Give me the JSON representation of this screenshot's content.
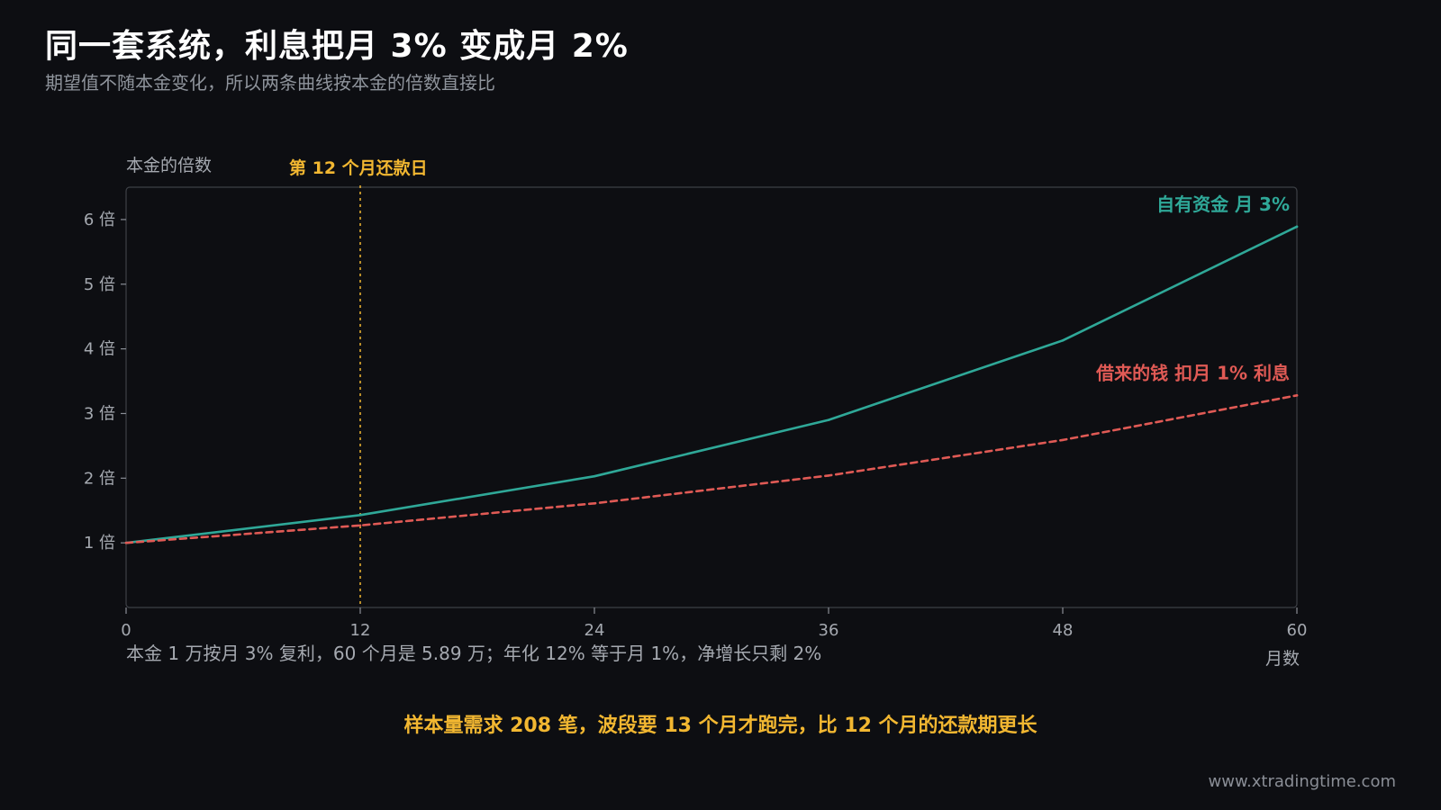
{
  "header": {
    "title": "同一套系统，利息把月 3% 变成月 2%",
    "subtitle": "期望值不随本金变化，所以两条曲线按本金的倍数直接比"
  },
  "chart_data": {
    "type": "line",
    "ylabel": "本金的倍数",
    "xlabel": "月数",
    "xlim": [
      0,
      60
    ],
    "ylim": [
      0,
      6.5
    ],
    "x_ticks": [
      {
        "value": 0,
        "label": "0"
      },
      {
        "value": 12,
        "label": "12"
      },
      {
        "value": 24,
        "label": "24"
      },
      {
        "value": 36,
        "label": "36"
      },
      {
        "value": 48,
        "label": "48"
      },
      {
        "value": 60,
        "label": "60"
      }
    ],
    "y_ticks": [
      {
        "value": 1,
        "label": "1 倍"
      },
      {
        "value": 2,
        "label": "2 倍"
      },
      {
        "value": 3,
        "label": "3 倍"
      },
      {
        "value": 4,
        "label": "4 倍"
      },
      {
        "value": 5,
        "label": "5 倍"
      },
      {
        "value": 6,
        "label": "6 倍"
      }
    ],
    "x": [
      0,
      12,
      24,
      36,
      48,
      60
    ],
    "series": [
      {
        "name": "自有资金 月 3%",
        "color": "#2fa898",
        "style": "solid",
        "values": [
          1.0,
          1.43,
          2.03,
          2.9,
          4.13,
          5.89
        ]
      },
      {
        "name": "借来的钱 扣月 1% 利息",
        "color": "#e05a55",
        "style": "dashed",
        "values": [
          1.0,
          1.27,
          1.61,
          2.04,
          2.59,
          3.28
        ]
      }
    ],
    "annotations": [
      {
        "type": "vline",
        "x": 12,
        "label": "第 12 个月还款日",
        "color": "#f2b731",
        "style": "dotted"
      }
    ],
    "footnote": "本金 1 万按月 3% 复利，60 个月是 5.89 万；年化 12% 等于月 1%，净增长只剩 2%"
  },
  "bottom_note": "样本量需求 208 笔，波段要 13 个月才跑完，比 12 个月的还款期更长",
  "footer": {
    "site": "www.xtradingtime.com"
  }
}
